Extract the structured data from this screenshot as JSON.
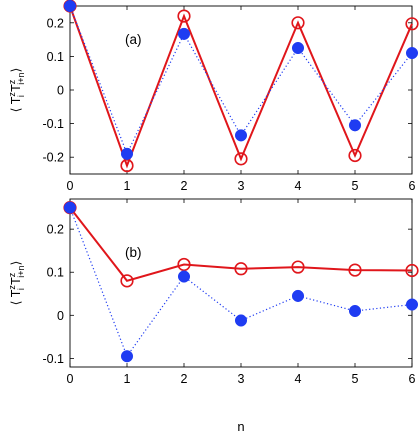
{
  "chart_data": [
    {
      "type": "line",
      "panel_label": "(a)",
      "xlabel": "",
      "ylabel_parts": [
        "⟨ T",
        "z",
        "i",
        " T",
        "z",
        "i+n",
        "⟩"
      ],
      "xlim": [
        0,
        6
      ],
      "ylim": [
        -0.25,
        0.25
      ],
      "xticks": [
        "0",
        "1",
        "2",
        "3",
        "4",
        "5",
        "6"
      ],
      "yticks": [
        {
          "value": -0.2,
          "label": "-0.2"
        },
        {
          "value": -0.1,
          "label": "-0.1"
        },
        {
          "value": 0,
          "label": "0"
        },
        {
          "value": 0.1,
          "label": "0.1"
        },
        {
          "value": 0.2,
          "label": "0.2"
        }
      ],
      "series": [
        {
          "style": "red-solid-open-circle",
          "color": "#e0161b",
          "x": [
            0,
            1,
            2,
            3,
            4,
            5,
            6
          ],
          "y": [
            0.25,
            -0.225,
            0.22,
            -0.205,
            0.2,
            -0.195,
            0.197
          ]
        },
        {
          "style": "blue-dotted-filled-circle",
          "color": "#1f3cf2",
          "x": [
            0,
            1,
            2,
            3,
            4,
            5,
            6
          ],
          "y": [
            0.25,
            -0.19,
            0.167,
            -0.135,
            0.125,
            -0.105,
            0.11
          ]
        }
      ]
    },
    {
      "type": "line",
      "panel_label": "(b)",
      "xlabel": "n",
      "ylabel_parts": [
        "⟨ T",
        "z",
        "i",
        " T",
        "z",
        "i+n",
        "⟩"
      ],
      "xlim": [
        0,
        6
      ],
      "ylim": [
        -0.12,
        0.27
      ],
      "xticks": [
        "0",
        "1",
        "2",
        "3",
        "4",
        "5",
        "6"
      ],
      "yticks": [
        {
          "value": -0.1,
          "label": "-0.1"
        },
        {
          "value": 0,
          "label": "0"
        },
        {
          "value": 0.1,
          "label": "0.1"
        },
        {
          "value": 0.2,
          "label": "0.2"
        }
      ],
      "series": [
        {
          "style": "red-solid-open-circle",
          "color": "#e0161b",
          "x": [
            0,
            1,
            2,
            3,
            4,
            5,
            6
          ],
          "y": [
            0.25,
            0.08,
            0.118,
            0.108,
            0.112,
            0.105,
            0.104
          ]
        },
        {
          "style": "blue-dotted-filled-circle",
          "color": "#1f3cf2",
          "x": [
            0,
            1,
            2,
            3,
            4,
            5,
            6
          ],
          "y": [
            0.25,
            -0.095,
            0.09,
            -0.012,
            0.045,
            0.01,
            0.025
          ]
        }
      ]
    }
  ]
}
